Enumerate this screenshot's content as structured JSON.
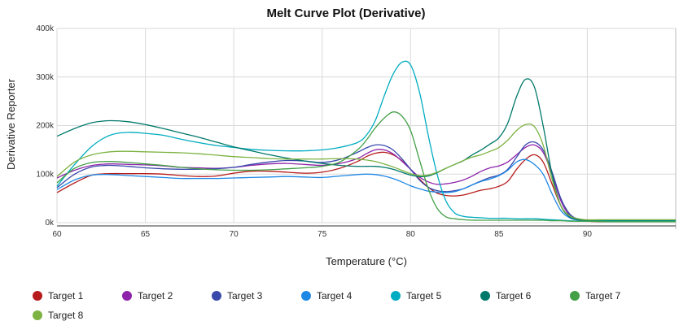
{
  "chart_data": {
    "type": "line",
    "title": "Melt Curve Plot (Derivative)",
    "xlabel": "Temperature (°C)",
    "ylabel": "Derivative Reporter",
    "xlim": [
      60,
      95
    ],
    "ylim": [
      0,
      400000
    ],
    "x_ticks": [
      60,
      65,
      70,
      75,
      80,
      85,
      90
    ],
    "x_tick_labels": [
      "60",
      "65",
      "70",
      "75",
      "80",
      "85",
      "90"
    ],
    "y_ticks": [
      0,
      100000,
      200000,
      300000,
      400000
    ],
    "y_tick_labels": [
      "0k",
      "100k",
      "200k",
      "300k",
      "400k"
    ],
    "grid": true,
    "legend_position": "bottom",
    "x": [
      60,
      61,
      62,
      63,
      64,
      65,
      66,
      67,
      68,
      69,
      70,
      71,
      72,
      73,
      74,
      75,
      76,
      77,
      77.5,
      78,
      78.5,
      79,
      79.5,
      80,
      80.5,
      81,
      81.5,
      82,
      82.5,
      83,
      83.5,
      84,
      84.5,
      85,
      85.5,
      86,
      86.5,
      87,
      87.5,
      88,
      88.5,
      89,
      89.5,
      90,
      91,
      92,
      93,
      94,
      95
    ],
    "series": [
      {
        "name": "Target 1",
        "color": "#b71c1c",
        "values": [
          62000,
          82000,
          98000,
          101000,
          101000,
          101000,
          100000,
          97000,
          95000,
          96000,
          102000,
          106000,
          106000,
          104000,
          102000,
          104000,
          112000,
          126000,
          136000,
          143000,
          145000,
          140000,
          128000,
          110000,
          90000,
          73000,
          61000,
          56000,
          55000,
          57000,
          62000,
          67000,
          70000,
          75000,
          85000,
          110000,
          130000,
          140000,
          125000,
          80000,
          35000,
          12000,
          5000,
          3000,
          2000,
          2000,
          2000,
          2000,
          2000
        ]
      },
      {
        "name": "Target 2",
        "color": "#8e24aa",
        "values": [
          92000,
          108000,
          118000,
          121000,
          120000,
          119000,
          117000,
          114000,
          113000,
          112000,
          114000,
          118000,
          121000,
          122000,
          120000,
          118000,
          122000,
          132000,
          142000,
          150000,
          150000,
          142000,
          127000,
          110000,
          94000,
          84000,
          79000,
          80000,
          83000,
          88000,
          96000,
          106000,
          113000,
          117000,
          125000,
          140000,
          155000,
          160000,
          145000,
          100000,
          45000,
          15000,
          6000,
          4000,
          3000,
          3000,
          3000,
          3000,
          3000
        ]
      },
      {
        "name": "Target 3",
        "color": "#3949ab",
        "values": [
          72000,
          100000,
          115000,
          118000,
          116000,
          113000,
          111000,
          110000,
          110000,
          111000,
          114000,
          120000,
          125000,
          128000,
          127000,
          124000,
          130000,
          145000,
          154000,
          160000,
          159000,
          150000,
          132000,
          110000,
          88000,
          73000,
          66000,
          64000,
          66000,
          70000,
          78000,
          86000,
          93000,
          98000,
          110000,
          135000,
          160000,
          166000,
          150000,
          105000,
          50000,
          18000,
          7000,
          5000,
          4000,
          4000,
          4000,
          4000,
          4000
        ]
      },
      {
        "name": "Target 4",
        "color": "#1e88e5",
        "values": [
          68000,
          88000,
          98000,
          99000,
          97000,
          95000,
          93000,
          91000,
          91000,
          91000,
          92000,
          93000,
          94000,
          95000,
          94000,
          93000,
          96000,
          99000,
          100000,
          99000,
          96000,
          91000,
          84000,
          76000,
          70000,
          65000,
          63000,
          62000,
          64000,
          70000,
          78000,
          85000,
          90000,
          97000,
          108000,
          125000,
          130000,
          120000,
          100000,
          60000,
          25000,
          10000,
          5000,
          4000,
          4000,
          4000,
          4000,
          4000,
          4000
        ]
      },
      {
        "name": "Target 5",
        "color": "#00acc1",
        "values": [
          75000,
          120000,
          158000,
          180000,
          186000,
          184000,
          180000,
          172000,
          165000,
          159000,
          155000,
          151000,
          149000,
          148000,
          148000,
          150000,
          155000,
          165000,
          180000,
          210000,
          260000,
          305000,
          330000,
          325000,
          270000,
          180000,
          100000,
          45000,
          20000,
          13000,
          11000,
          10000,
          9000,
          9000,
          9000,
          8000,
          8000,
          8000,
          7000,
          6000,
          5000,
          4000,
          3000,
          3000,
          3000,
          3000,
          3000,
          3000,
          3000
        ]
      },
      {
        "name": "Target 6",
        "color": "#00796b",
        "values": [
          178000,
          194000,
          206000,
          210000,
          208000,
          202000,
          194000,
          185000,
          176000,
          166000,
          156000,
          148000,
          140000,
          133000,
          127000,
          122000,
          118000,
          116000,
          116000,
          116000,
          114000,
          110000,
          104000,
          98000,
          95000,
          96000,
          103000,
          112000,
          120000,
          128000,
          140000,
          150000,
          162000,
          175000,
          205000,
          260000,
          295000,
          280000,
          200000,
          100000,
          35000,
          12000,
          6000,
          5000,
          5000,
          5000,
          5000,
          5000,
          5000
        ]
      },
      {
        "name": "Target 7",
        "color": "#43a047",
        "values": [
          82000,
          112000,
          124000,
          126000,
          124000,
          121000,
          118000,
          114000,
          111000,
          109000,
          108000,
          108000,
          109000,
          111000,
          113000,
          116000,
          125000,
          150000,
          170000,
          195000,
          215000,
          228000,
          220000,
          190000,
          130000,
          70000,
          30000,
          12000,
          8000,
          6000,
          5000,
          5000,
          5000,
          5000,
          5000,
          5000,
          5000,
          5000,
          5000,
          4000,
          4000,
          3000,
          3000,
          3000,
          2000,
          2000,
          2000,
          2000,
          2000
        ]
      },
      {
        "name": "Target 8",
        "color": "#7cb342",
        "values": [
          95000,
          125000,
          140000,
          146000,
          147000,
          146000,
          145000,
          144000,
          142000,
          139000,
          136000,
          134000,
          132000,
          131000,
          131000,
          131000,
          132000,
          131000,
          129000,
          126000,
          121000,
          115000,
          108000,
          101000,
          97000,
          98000,
          104000,
          112000,
          120000,
          128000,
          135000,
          140000,
          147000,
          155000,
          170000,
          190000,
          202000,
          198000,
          160000,
          90000,
          35000,
          14000,
          8000,
          6000,
          6000,
          6000,
          6000,
          6000,
          6000
        ]
      }
    ]
  }
}
